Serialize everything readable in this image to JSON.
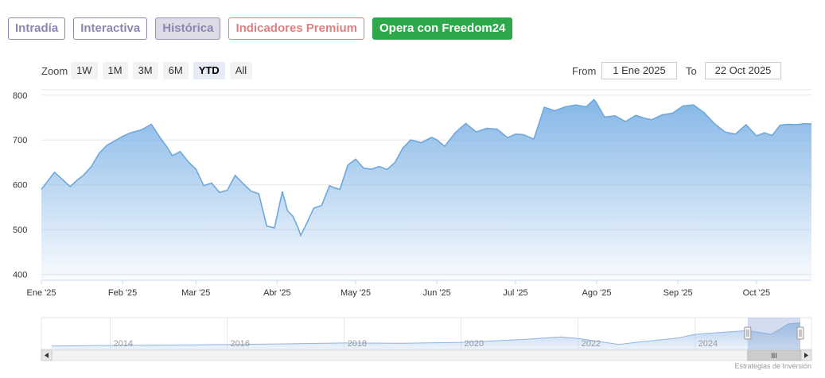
{
  "tabs": [
    {
      "label": "Intradía"
    },
    {
      "label": "Interactiva"
    },
    {
      "label": "Histórica"
    },
    {
      "label": "Indicadores Premium"
    },
    {
      "label": "Opera con Freedom24"
    }
  ],
  "zoom": {
    "label": "Zoom",
    "buttons": [
      "1W",
      "1M",
      "3M",
      "6M",
      "YTD",
      "All"
    ],
    "active": "YTD"
  },
  "range": {
    "from_label": "From",
    "from_value": "1 Ene 2025",
    "to_label": "To",
    "to_value": "22 Oct 2025"
  },
  "colors": {
    "series": "#6fa8dc",
    "fill_top": "#7fb3e6",
    "navigator_mask": "#c7d6ee"
  },
  "chart_data": {
    "type": "area",
    "title": "",
    "xlabel": "",
    "ylabel": "",
    "ylim": [
      400,
      800
    ],
    "yticks": [
      400,
      500,
      600,
      700,
      800
    ],
    "x_range": [
      "2025-01-01",
      "2025-10-22"
    ],
    "xticks": [
      {
        "label": "Ene '25",
        "date": "2025-01-01"
      },
      {
        "label": "Feb '25",
        "date": "2025-02-01"
      },
      {
        "label": "Mar '25",
        "date": "2025-03-01"
      },
      {
        "label": "Abr '25",
        "date": "2025-04-01"
      },
      {
        "label": "May '25",
        "date": "2025-05-01"
      },
      {
        "label": "Jun '25",
        "date": "2025-06-01"
      },
      {
        "label": "Jul '25",
        "date": "2025-07-01"
      },
      {
        "label": "Ago '25",
        "date": "2025-08-01"
      },
      {
        "label": "Sep '25",
        "date": "2025-09-01"
      },
      {
        "label": "Oct '25",
        "date": "2025-10-01"
      }
    ],
    "grid": true,
    "legend": "none",
    "series": [
      {
        "x": [
          "2025-01-01",
          "2025-01-03",
          "2025-01-06",
          "2025-01-09",
          "2025-01-12",
          "2025-01-15",
          "2025-01-17",
          "2025-01-20",
          "2025-01-23",
          "2025-01-26",
          "2025-01-29",
          "2025-02-01",
          "2025-02-04",
          "2025-02-08",
          "2025-02-12",
          "2025-02-15",
          "2025-02-18",
          "2025-02-20",
          "2025-02-23",
          "2025-02-26",
          "2025-03-01",
          "2025-03-04",
          "2025-03-07",
          "2025-03-10",
          "2025-03-13",
          "2025-03-16",
          "2025-03-19",
          "2025-03-22",
          "2025-03-25",
          "2025-03-28",
          "2025-03-31",
          "2025-04-03",
          "2025-04-05",
          "2025-04-07",
          "2025-04-09",
          "2025-04-10",
          "2025-04-12",
          "2025-04-15",
          "2025-04-18",
          "2025-04-21",
          "2025-04-23",
          "2025-04-25",
          "2025-04-28",
          "2025-05-01",
          "2025-05-04",
          "2025-05-07",
          "2025-05-10",
          "2025-05-13",
          "2025-05-16",
          "2025-05-19",
          "2025-05-22",
          "2025-05-26",
          "2025-05-30",
          "2025-06-01",
          "2025-06-04",
          "2025-06-08",
          "2025-06-12",
          "2025-06-16",
          "2025-06-20",
          "2025-06-24",
          "2025-06-28",
          "2025-07-01",
          "2025-07-04",
          "2025-07-08",
          "2025-07-12",
          "2025-07-16",
          "2025-07-20",
          "2025-07-24",
          "2025-07-28",
          "2025-07-31",
          "2025-08-01",
          "2025-08-04",
          "2025-08-08",
          "2025-08-12",
          "2025-08-16",
          "2025-08-19",
          "2025-08-22",
          "2025-08-26",
          "2025-08-30",
          "2025-09-03",
          "2025-09-07",
          "2025-09-11",
          "2025-09-15",
          "2025-09-19",
          "2025-09-23",
          "2025-09-27",
          "2025-10-01",
          "2025-10-04",
          "2025-10-07",
          "2025-10-10",
          "2025-10-13",
          "2025-10-16",
          "2025-10-19",
          "2025-10-22"
        ],
        "y": [
          590,
          605,
          628,
          612,
          596,
          612,
          621,
          640,
          670,
          688,
          698,
          708,
          716,
          722,
          735,
          708,
          684,
          665,
          674,
          652,
          635,
          598,
          604,
          583,
          588,
          621,
          603,
          586,
          580,
          508,
          504,
          585,
          542,
          530,
          504,
          487,
          510,
          548,
          554,
          598,
          593,
          590,
          644,
          657,
          637,
          635,
          641,
          634,
          650,
          682,
          700,
          694,
          706,
          700,
          686,
          716,
          737,
          718,
          726,
          724,
          705,
          713,
          712,
          702,
          773,
          765,
          774,
          778,
          774,
          790,
          782,
          751,
          754,
          741,
          755,
          749,
          745,
          756,
          760,
          776,
          778,
          761,
          736,
          718,
          713,
          734,
          709,
          716,
          710,
          733,
          735,
          734,
          736,
          736
        ]
      }
    ]
  },
  "navigator": {
    "tick_labels": [
      "2014",
      "2016",
      "2018",
      "2020",
      "2022",
      "2024"
    ],
    "history": [
      {
        "year": 2013.0,
        "value": 300
      },
      {
        "year": 2014.0,
        "value": 310
      },
      {
        "year": 2015.0,
        "value": 318
      },
      {
        "year": 2016.0,
        "value": 326
      },
      {
        "year": 2017.0,
        "value": 340
      },
      {
        "year": 2018.0,
        "value": 356
      },
      {
        "year": 2019.0,
        "value": 350
      },
      {
        "year": 2020.0,
        "value": 368
      },
      {
        "year": 2021.0,
        "value": 420
      },
      {
        "year": 2021.7,
        "value": 470
      },
      {
        "year": 2022.0,
        "value": 440
      },
      {
        "year": 2022.7,
        "value": 330
      },
      {
        "year": 2023.0,
        "value": 370
      },
      {
        "year": 2023.7,
        "value": 450
      },
      {
        "year": 2024.0,
        "value": 520
      },
      {
        "year": 2024.5,
        "value": 560
      },
      {
        "year": 2024.9,
        "value": 590
      },
      {
        "year": 2025.3,
        "value": 520
      },
      {
        "year": 2025.6,
        "value": 720
      },
      {
        "year": 2025.8,
        "value": 736
      }
    ],
    "selected_range": [
      2024.9,
      2025.8
    ],
    "scrollbar_grip": "III"
  },
  "credit": "Estrategias de Inversión"
}
